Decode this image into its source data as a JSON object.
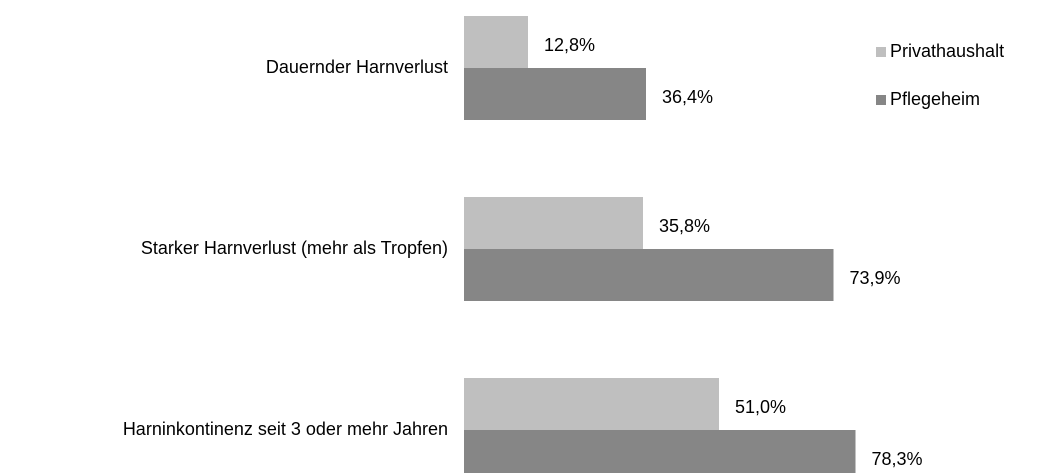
{
  "chart_data": {
    "type": "hbar",
    "categories": [
      "Dauernder Harnverlust",
      "Starker Harnverlust (mehr als Tropfen)",
      "Harninkontinenz seit 3 oder mehr Jahren"
    ],
    "series": [
      {
        "name": "Privathaushalt",
        "color": "#bfbfbf",
        "values": [
          12.8,
          35.8,
          51.0
        ],
        "value_labels": [
          "12,8%",
          "35,8%",
          "51,0%"
        ]
      },
      {
        "name": "Pflegeheim",
        "color": "#868686",
        "values": [
          36.4,
          73.9,
          78.3
        ],
        "value_labels": [
          "36,4%",
          "73,9%",
          "78,3%"
        ]
      }
    ],
    "legend": "top-right"
  }
}
